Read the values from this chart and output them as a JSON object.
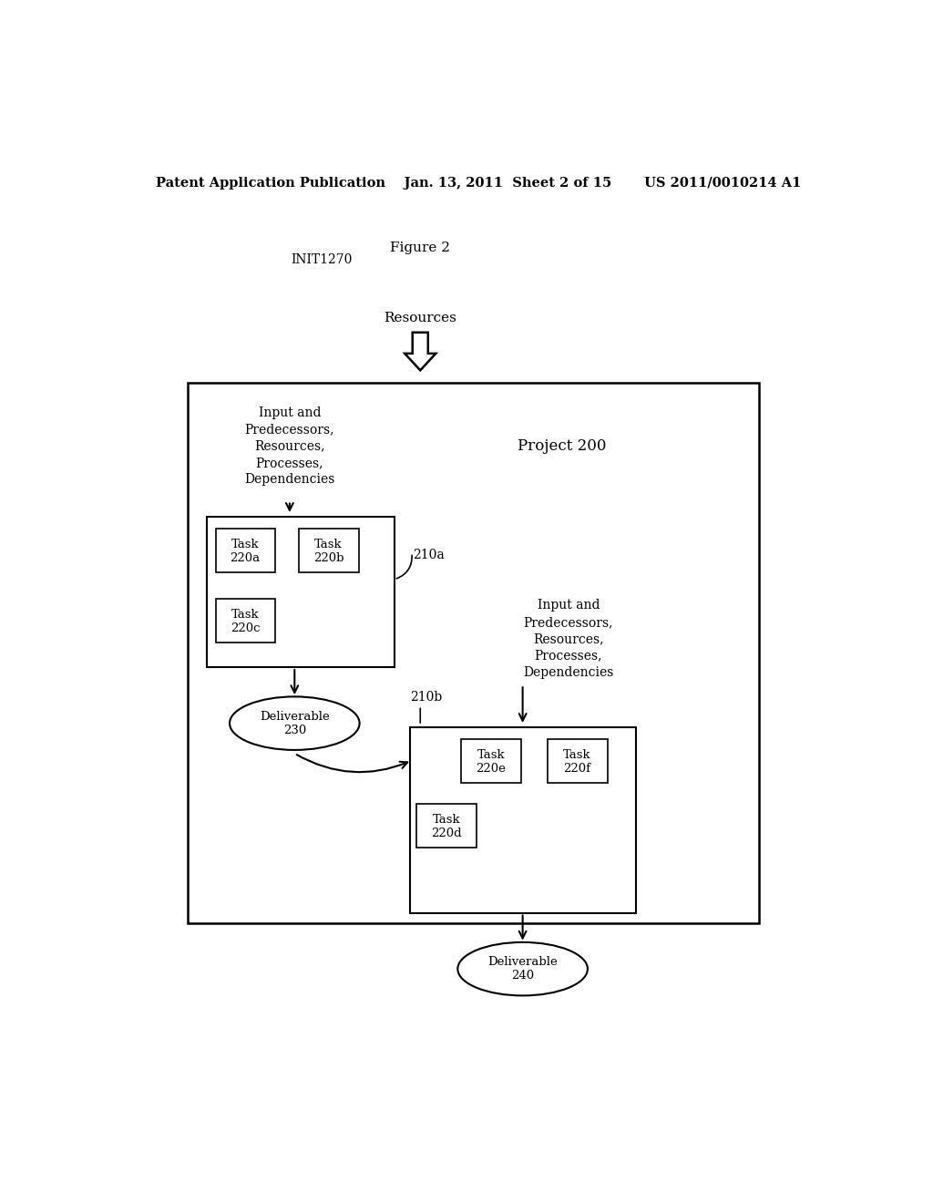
{
  "bg_color": "#ffffff",
  "header_left": "Patent Application Publication",
  "header_mid": "Jan. 13, 2011  Sheet 2 of 15",
  "header_right": "US 2011/0010214 A1",
  "figure_label": "Figure 2",
  "init_label": "INIT1270",
  "resources_label": "Resources",
  "project_label": "Project 200",
  "label_210a": "210a",
  "label_210b": "210b",
  "input_text_1": "Input and\nPredecessors,\nResources,\nProcesses,\nDependencies",
  "input_text_2": "Input and\nPredecessors,\nResources,\nProcesses,\nDependencies",
  "task_texts": [
    "Task\n220a",
    "Task\n220b",
    "Task\n220c",
    "Task\n220d",
    "Task\n220e",
    "Task\n220f"
  ],
  "deliv_230_text": "Deliverable\n230",
  "deliv_240_text": "Deliverable\n240"
}
